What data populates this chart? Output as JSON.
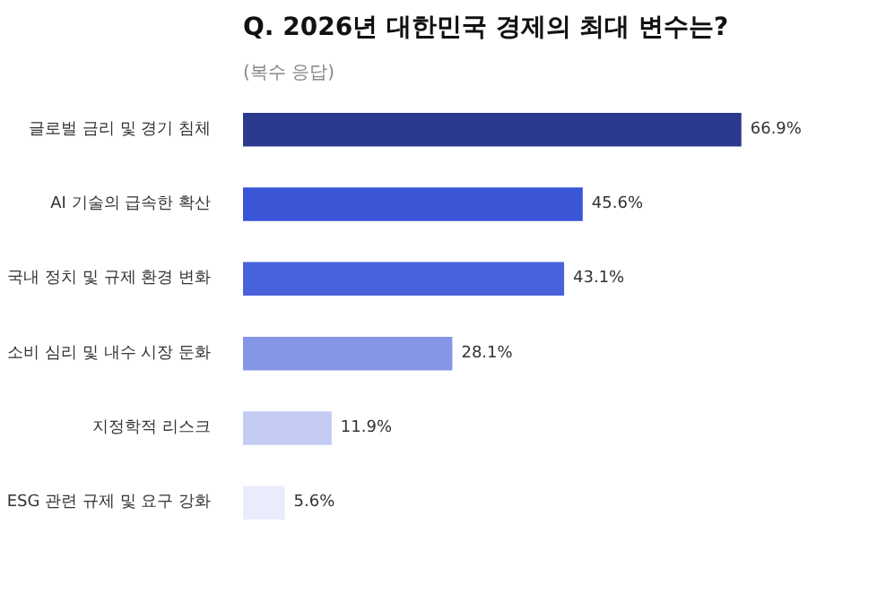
{
  "chart_data": {
    "type": "bar",
    "orientation": "horizontal",
    "title": "Q. 2026년 대한민국 경제의 최대 변수는?",
    "subtitle": "(복수 응답)",
    "categories": [
      "글로벌 금리 및 경기 침체",
      "AI 기술의 급속한 확산",
      "국내 정치 및 규제 환경 변화",
      "소비 심리 및 내수 시장 둔화",
      "지정학적 리스크",
      "ESG 관련 규제 및 요구 강화"
    ],
    "values": [
      66.9,
      45.6,
      43.1,
      28.1,
      11.9,
      5.6
    ],
    "colors": [
      "#2b3a8f",
      "#3a55d6",
      "#4862dc",
      "#8696e6",
      "#c4ccf3",
      "#e9ecfb"
    ],
    "value_labels": [
      "66.9%",
      "45.6%",
      "43.1%",
      "28.1%",
      "11.9%",
      "5.6%"
    ],
    "grid": false
  }
}
